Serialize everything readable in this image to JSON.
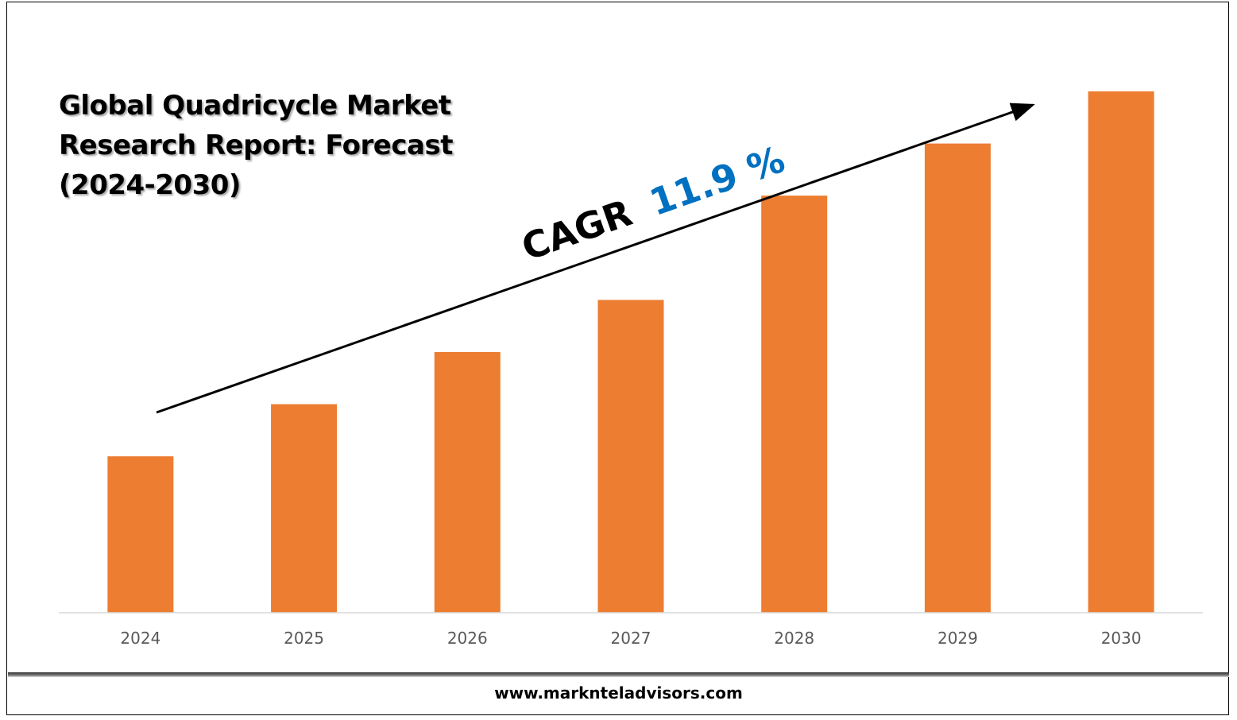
{
  "chart_data": {
    "type": "bar",
    "title": "Global Quadricycle Market Research Report: Forecast (2024-2030)",
    "title_lines": [
      "Global Quadricycle Market",
      "Research Report: Forecast",
      "(2024-2030)"
    ],
    "categories": [
      "2024",
      "2025",
      "2026",
      "2027",
      "2028",
      "2029",
      "2030"
    ],
    "values": [
      30,
      40,
      50,
      60,
      80,
      90,
      100
    ],
    "ylim": [
      0,
      100
    ],
    "xlabel": "",
    "ylabel": "",
    "grid": false,
    "legend": "none",
    "bar_color": "#ED7D31",
    "annotation": {
      "prefix": "CAGR",
      "value": "11.9 %",
      "value_color": "#0070C0"
    }
  },
  "footer": {
    "url": "www.marknteladvisors.com"
  }
}
